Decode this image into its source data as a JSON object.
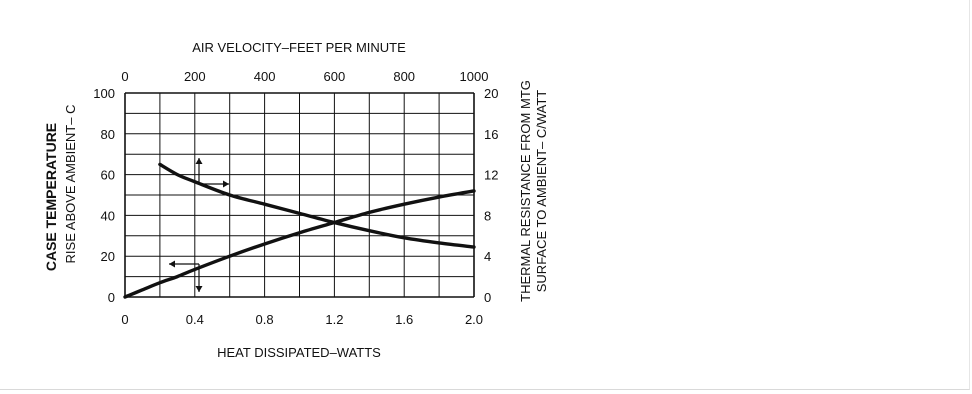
{
  "chart_data": {
    "type": "line",
    "title": "",
    "x_bottom": {
      "label": "HEAT DISSIPATED–WATTS",
      "range": [
        0,
        2.0
      ],
      "ticks": [
        "0",
        "0.4",
        "0.8",
        "1.2",
        "1.6",
        "2.0"
      ],
      "tick_values": [
        0,
        0.4,
        0.8,
        1.2,
        1.6,
        2.0
      ]
    },
    "x_top": {
      "label": "AIR VELOCITY–FEET PER MINUTE",
      "range": [
        0,
        1000
      ],
      "ticks": [
        "0",
        "200",
        "400",
        "600",
        "800",
        "1000"
      ],
      "tick_values": [
        0,
        200,
        400,
        600,
        800,
        1000
      ]
    },
    "y_left": {
      "label_line1": "CASE TEMPERATURE",
      "label_line2": "RISE ABOVE AMBIENT– C",
      "range": [
        0,
        100
      ],
      "ticks": [
        "0",
        "20",
        "40",
        "60",
        "80",
        "100"
      ],
      "tick_values": [
        0,
        20,
        40,
        60,
        80,
        100
      ]
    },
    "y_right": {
      "label_line1": "THERMAL RESISTANCE FROM MTG",
      "label_line2": "SURFACE TO AMBIENT– C/WATT",
      "range": [
        0,
        20
      ],
      "ticks": [
        "0",
        "4",
        "8",
        "12",
        "16",
        "20"
      ],
      "tick_values": [
        0,
        4,
        8,
        12,
        16,
        20
      ]
    },
    "grid": true,
    "series": [
      {
        "x_axis": "bottom",
        "y_axis": "left",
        "points": [
          [
            0,
            0
          ],
          [
            0.1,
            3.5
          ],
          [
            0.2,
            7
          ],
          [
            0.3,
            10
          ],
          [
            0.4,
            13.5
          ],
          [
            0.6,
            20
          ],
          [
            0.8,
            26
          ],
          [
            1.0,
            31.5
          ],
          [
            1.2,
            36.5
          ],
          [
            1.4,
            41.5
          ],
          [
            1.6,
            45.5
          ],
          [
            1.8,
            49
          ],
          [
            2.0,
            52
          ]
        ]
      },
      {
        "x_axis": "top",
        "y_axis": "right",
        "points": [
          [
            100,
            13
          ],
          [
            150,
            12
          ],
          [
            200,
            11.3
          ],
          [
            300,
            10
          ],
          [
            400,
            9.1
          ],
          [
            500,
            8.2
          ],
          [
            600,
            7.3
          ],
          [
            700,
            6.5
          ],
          [
            800,
            5.8
          ],
          [
            900,
            5.3
          ],
          [
            1000,
            4.9
          ]
        ]
      }
    ],
    "annotations": [
      {
        "kind": "arrow-up",
        "near": "upper curve",
        "meaning": "reads with right axis"
      },
      {
        "kind": "arrow-right",
        "near": "upper curve",
        "meaning": "reads with top axis"
      },
      {
        "kind": "arrow-left",
        "near": "lower curve",
        "meaning": "reads with left axis"
      },
      {
        "kind": "arrow-down",
        "near": "lower curve",
        "meaning": "reads with bottom axis"
      }
    ]
  }
}
